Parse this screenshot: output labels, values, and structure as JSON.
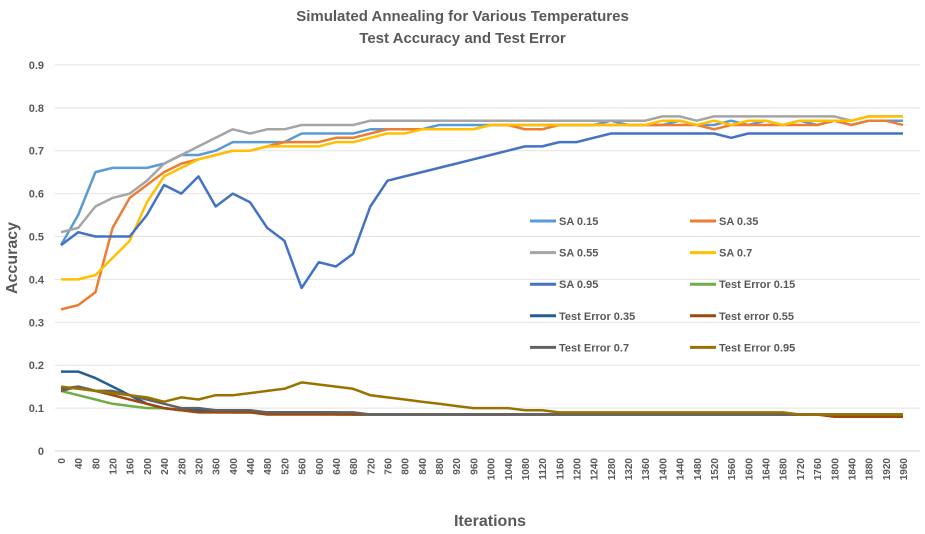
{
  "chart_data": {
    "type": "line",
    "title": "Simulated Annealing for Various Temperatures",
    "subtitle": "Test Accuracy and Test Error",
    "xlabel": "Iterations",
    "ylabel": "Accuracy",
    "ylim": [
      0,
      0.9
    ],
    "yticks": [
      "0",
      "0.1",
      "0.2",
      "0.3",
      "0.4",
      "0.5",
      "0.6",
      "0.7",
      "0.8",
      "0.9"
    ],
    "grid": true,
    "legend_placement": "center-right",
    "x": [
      0,
      40,
      80,
      120,
      160,
      200,
      240,
      280,
      320,
      360,
      400,
      440,
      480,
      520,
      560,
      600,
      640,
      680,
      720,
      760,
      800,
      840,
      880,
      920,
      960,
      1000,
      1040,
      1080,
      1120,
      1160,
      1200,
      1240,
      1280,
      1320,
      1360,
      1400,
      1440,
      1480,
      1520,
      1560,
      1600,
      1640,
      1680,
      1720,
      1760,
      1800,
      1840,
      1880,
      1920,
      1960
    ],
    "series": [
      {
        "name": "SA 0.15",
        "color": "#5B9BD5",
        "values": [
          0.48,
          0.55,
          0.65,
          0.66,
          0.66,
          0.66,
          0.67,
          0.69,
          0.69,
          0.7,
          0.72,
          0.72,
          0.72,
          0.72,
          0.74,
          0.74,
          0.74,
          0.74,
          0.75,
          0.75,
          0.75,
          0.75,
          0.76,
          0.76,
          0.76,
          0.76,
          0.76,
          0.76,
          0.76,
          0.76,
          0.76,
          0.76,
          0.77,
          0.76,
          0.76,
          0.76,
          0.77,
          0.76,
          0.76,
          0.77,
          0.76,
          0.77,
          0.76,
          0.77,
          0.76,
          0.77,
          0.76,
          0.77,
          0.77,
          0.77
        ]
      },
      {
        "name": "SA 0.35",
        "color": "#ED7D31",
        "values": [
          0.33,
          0.34,
          0.37,
          0.52,
          0.59,
          0.62,
          0.65,
          0.67,
          0.68,
          0.69,
          0.7,
          0.7,
          0.71,
          0.72,
          0.72,
          0.72,
          0.73,
          0.73,
          0.74,
          0.75,
          0.75,
          0.75,
          0.75,
          0.75,
          0.75,
          0.76,
          0.76,
          0.75,
          0.75,
          0.76,
          0.76,
          0.76,
          0.76,
          0.76,
          0.76,
          0.76,
          0.76,
          0.76,
          0.75,
          0.76,
          0.76,
          0.76,
          0.76,
          0.76,
          0.76,
          0.77,
          0.76,
          0.77,
          0.77,
          0.76
        ]
      },
      {
        "name": "SA 0.55",
        "color": "#A5A5A5",
        "values": [
          0.51,
          0.52,
          0.57,
          0.59,
          0.6,
          0.63,
          0.67,
          0.69,
          0.71,
          0.73,
          0.75,
          0.74,
          0.75,
          0.75,
          0.76,
          0.76,
          0.76,
          0.76,
          0.77,
          0.77,
          0.77,
          0.77,
          0.77,
          0.77,
          0.77,
          0.77,
          0.77,
          0.77,
          0.77,
          0.77,
          0.77,
          0.77,
          0.77,
          0.77,
          0.77,
          0.78,
          0.78,
          0.77,
          0.78,
          0.78,
          0.78,
          0.78,
          0.78,
          0.78,
          0.78,
          0.78,
          0.77,
          0.78,
          0.78,
          0.78
        ]
      },
      {
        "name": "SA 0.7",
        "color": "#FFC000",
        "values": [
          0.4,
          0.4,
          0.41,
          0.45,
          0.49,
          0.58,
          0.64,
          0.66,
          0.68,
          0.69,
          0.7,
          0.7,
          0.71,
          0.71,
          0.71,
          0.71,
          0.72,
          0.72,
          0.73,
          0.74,
          0.74,
          0.75,
          0.75,
          0.75,
          0.75,
          0.76,
          0.76,
          0.76,
          0.76,
          0.76,
          0.76,
          0.76,
          0.76,
          0.76,
          0.76,
          0.77,
          0.77,
          0.76,
          0.77,
          0.76,
          0.77,
          0.77,
          0.76,
          0.77,
          0.77,
          0.77,
          0.77,
          0.78,
          0.78,
          0.78
        ]
      },
      {
        "name": "SA 0.95",
        "color": "#4472C4",
        "values": [
          0.48,
          0.51,
          0.5,
          0.5,
          0.5,
          0.55,
          0.62,
          0.6,
          0.64,
          0.57,
          0.6,
          0.58,
          0.52,
          0.49,
          0.38,
          0.44,
          0.43,
          0.46,
          0.57,
          0.63,
          0.64,
          0.65,
          0.66,
          0.67,
          0.68,
          0.69,
          0.7,
          0.71,
          0.71,
          0.72,
          0.72,
          0.73,
          0.74,
          0.74,
          0.74,
          0.74,
          0.74,
          0.74,
          0.74,
          0.73,
          0.74,
          0.74,
          0.74,
          0.74,
          0.74,
          0.74,
          0.74,
          0.74,
          0.74,
          0.74
        ]
      },
      {
        "name": "Test Error 0.15",
        "color": "#70AD47",
        "values": [
          0.14,
          0.13,
          0.12,
          0.11,
          0.105,
          0.1,
          0.1,
          0.095,
          0.095,
          0.09,
          0.09,
          0.09,
          0.09,
          0.09,
          0.09,
          0.09,
          0.085,
          0.085,
          0.085,
          0.085,
          0.085,
          0.085,
          0.085,
          0.085,
          0.085,
          0.085,
          0.085,
          0.085,
          0.085,
          0.085,
          0.085,
          0.085,
          0.085,
          0.085,
          0.085,
          0.085,
          0.085,
          0.085,
          0.085,
          0.085,
          0.085,
          0.085,
          0.085,
          0.085,
          0.085,
          0.085,
          0.085,
          0.085,
          0.085,
          0.085
        ]
      },
      {
        "name": "Test Error 0.35",
        "color": "#255E91",
        "values": [
          0.185,
          0.185,
          0.17,
          0.15,
          0.13,
          0.11,
          0.1,
          0.095,
          0.095,
          0.095,
          0.09,
          0.09,
          0.09,
          0.09,
          0.09,
          0.09,
          0.09,
          0.085,
          0.085,
          0.085,
          0.085,
          0.085,
          0.085,
          0.085,
          0.085,
          0.085,
          0.085,
          0.085,
          0.085,
          0.085,
          0.085,
          0.085,
          0.085,
          0.085,
          0.085,
          0.085,
          0.085,
          0.085,
          0.085,
          0.085,
          0.085,
          0.085,
          0.085,
          0.085,
          0.085,
          0.085,
          0.085,
          0.085,
          0.085,
          0.085
        ]
      },
      {
        "name": "Test error 0.55",
        "color": "#9E480E",
        "values": [
          0.145,
          0.15,
          0.14,
          0.13,
          0.12,
          0.11,
          0.1,
          0.095,
          0.09,
          0.09,
          0.09,
          0.09,
          0.085,
          0.085,
          0.085,
          0.085,
          0.085,
          0.085,
          0.085,
          0.085,
          0.085,
          0.085,
          0.085,
          0.085,
          0.085,
          0.085,
          0.085,
          0.085,
          0.085,
          0.085,
          0.085,
          0.085,
          0.085,
          0.085,
          0.085,
          0.085,
          0.085,
          0.085,
          0.085,
          0.085,
          0.085,
          0.085,
          0.085,
          0.085,
          0.085,
          0.08,
          0.08,
          0.08,
          0.08,
          0.08
        ]
      },
      {
        "name": "Test Error 0.7",
        "color": "#636363",
        "values": [
          0.14,
          0.15,
          0.14,
          0.14,
          0.13,
          0.12,
          0.11,
          0.1,
          0.1,
          0.095,
          0.095,
          0.095,
          0.09,
          0.09,
          0.09,
          0.09,
          0.09,
          0.09,
          0.085,
          0.085,
          0.085,
          0.085,
          0.085,
          0.085,
          0.085,
          0.085,
          0.085,
          0.085,
          0.085,
          0.085,
          0.085,
          0.085,
          0.085,
          0.085,
          0.085,
          0.085,
          0.085,
          0.085,
          0.085,
          0.085,
          0.085,
          0.085,
          0.085,
          0.085,
          0.085,
          0.085,
          0.085,
          0.085,
          0.085,
          0.085
        ]
      },
      {
        "name": "Test Error 0.95",
        "color": "#997300",
        "values": [
          0.15,
          0.145,
          0.14,
          0.135,
          0.13,
          0.125,
          0.115,
          0.125,
          0.12,
          0.13,
          0.13,
          0.135,
          0.14,
          0.145,
          0.16,
          0.155,
          0.15,
          0.145,
          0.13,
          0.125,
          0.12,
          0.115,
          0.11,
          0.105,
          0.1,
          0.1,
          0.1,
          0.095,
          0.095,
          0.09,
          0.09,
          0.09,
          0.09,
          0.09,
          0.09,
          0.09,
          0.09,
          0.09,
          0.09,
          0.09,
          0.09,
          0.09,
          0.09,
          0.085,
          0.085,
          0.085,
          0.085,
          0.085,
          0.085,
          0.085
        ]
      }
    ]
  }
}
